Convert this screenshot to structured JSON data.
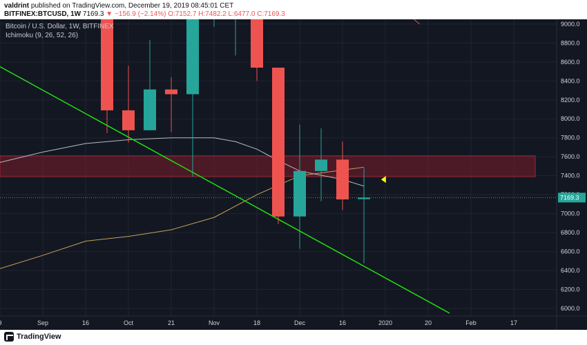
{
  "header": {
    "author": "valdrint",
    "published_text": "published on TradingView.com, December 19, 2019 08:45:01 CET",
    "symbol": "BITFINEX:BTCUSD, 1W",
    "price": "7169.3",
    "change": "▼ −156.9 (−2.14%)",
    "ohlc": "O:7152.7  H:7482.2  L:6477.0  C:7169.3"
  },
  "legend": {
    "title": "Bitcoin / U.S. Dollar, 1W, BITFINEX",
    "indicator": "Ichimoku (9, 26, 52, 26)"
  },
  "footer": {
    "brand": "TradingView"
  },
  "colors": {
    "background": "#131722",
    "up": "#26a69a",
    "down": "#ef5350",
    "trendline": "#22dd11",
    "zone": "#7a1e2a",
    "baseline": "#c7a25b",
    "conversion": "#b9bcc4",
    "marker": "#ffff00",
    "axis_text": "#d1d4dc",
    "grid": "#1f2433"
  },
  "chart_data": {
    "type": "candlestick",
    "title": "Bitcoin / U.S. Dollar, 1W, BITFINEX",
    "y_ticks": [
      6000,
      6200,
      6400,
      6600,
      6800,
      7000,
      7200,
      7400,
      7600,
      7800,
      8000,
      8200,
      8400,
      8600,
      8800,
      9000
    ],
    "ylim": [
      5920,
      9050
    ],
    "x_ticks": [
      {
        "x": 0,
        "label": "9"
      },
      {
        "x": 1,
        "label": "Sep"
      },
      {
        "x": 2,
        "label": "16"
      },
      {
        "x": 3,
        "label": "Oct"
      },
      {
        "x": 4,
        "label": "21"
      },
      {
        "x": 5,
        "label": "Nov"
      },
      {
        "x": 6,
        "label": "18"
      },
      {
        "x": 7,
        "label": "Dec"
      },
      {
        "x": 8,
        "label": "16"
      },
      {
        "x": 9,
        "label": "2020"
      },
      {
        "x": 10,
        "label": "20"
      },
      {
        "x": 11,
        "label": "Feb"
      },
      {
        "x": 12,
        "label": "17"
      }
    ],
    "xlim": [
      0,
      13
    ],
    "candles": [
      {
        "x": 2.5,
        "open": 9100,
        "high": 9100,
        "low": 7850,
        "close": 8090
      },
      {
        "x": 3.0,
        "open": 8090,
        "high": 8560,
        "low": 7750,
        "close": 7880
      },
      {
        "x": 3.5,
        "open": 7880,
        "high": 8830,
        "low": 7880,
        "close": 8310
      },
      {
        "x": 4.0,
        "open": 8310,
        "high": 8440,
        "low": 7860,
        "close": 8260
      },
      {
        "x": 4.5,
        "open": 8260,
        "high": 9100,
        "low": 7390,
        "close": 9100
      },
      {
        "x": 5.0,
        "open": 9100,
        "high": 9100,
        "low": 8970,
        "close": 9100
      },
      {
        "x": 5.5,
        "open": 9100,
        "high": 9100,
        "low": 8670,
        "close": 9100
      },
      {
        "x": 6.0,
        "open": 9100,
        "high": 9100,
        "low": 8400,
        "close": 8540
      },
      {
        "x": 6.5,
        "open": 8540,
        "high": 8540,
        "low": 6890,
        "close": 6970
      },
      {
        "x": 7.0,
        "open": 6970,
        "high": 7940,
        "low": 6630,
        "close": 7450
      },
      {
        "x": 7.5,
        "open": 7450,
        "high": 7900,
        "low": 7130,
        "close": 7570
      },
      {
        "x": 8.0,
        "open": 7570,
        "high": 7760,
        "low": 7040,
        "close": 7150
      },
      {
        "x": 8.5,
        "open": 7153,
        "high": 7482,
        "low": 6477,
        "close": 7169
      }
    ],
    "resistance_zone": {
      "x_start": 0,
      "x_end": 12.5,
      "low": 7390,
      "high": 7610
    },
    "trendline": {
      "points": [
        [
          0,
          8550
        ],
        [
          10.5,
          5950
        ]
      ]
    },
    "baseline_line": {
      "x": [
        0,
        1,
        2,
        3,
        4,
        5,
        6,
        7,
        8.5
      ],
      "y": [
        6420,
        6560,
        6710,
        6760,
        6830,
        6960,
        7200,
        7400,
        7490
      ]
    },
    "conversion_line": {
      "x": [
        0,
        1,
        2,
        3,
        4,
        5,
        5.5,
        6,
        6.5,
        7,
        8,
        8.5
      ],
      "y": [
        7540,
        7650,
        7740,
        7780,
        7800,
        7800,
        7760,
        7680,
        7560,
        7450,
        7360,
        7290
      ]
    },
    "top_red_line": {
      "x": [
        9.4,
        9.8
      ],
      "y": [
        9150,
        9000
      ]
    },
    "marker": {
      "x": 8.9,
      "y": 7360
    },
    "last_price": {
      "value": 7169.3,
      "label": "7169.3"
    }
  }
}
